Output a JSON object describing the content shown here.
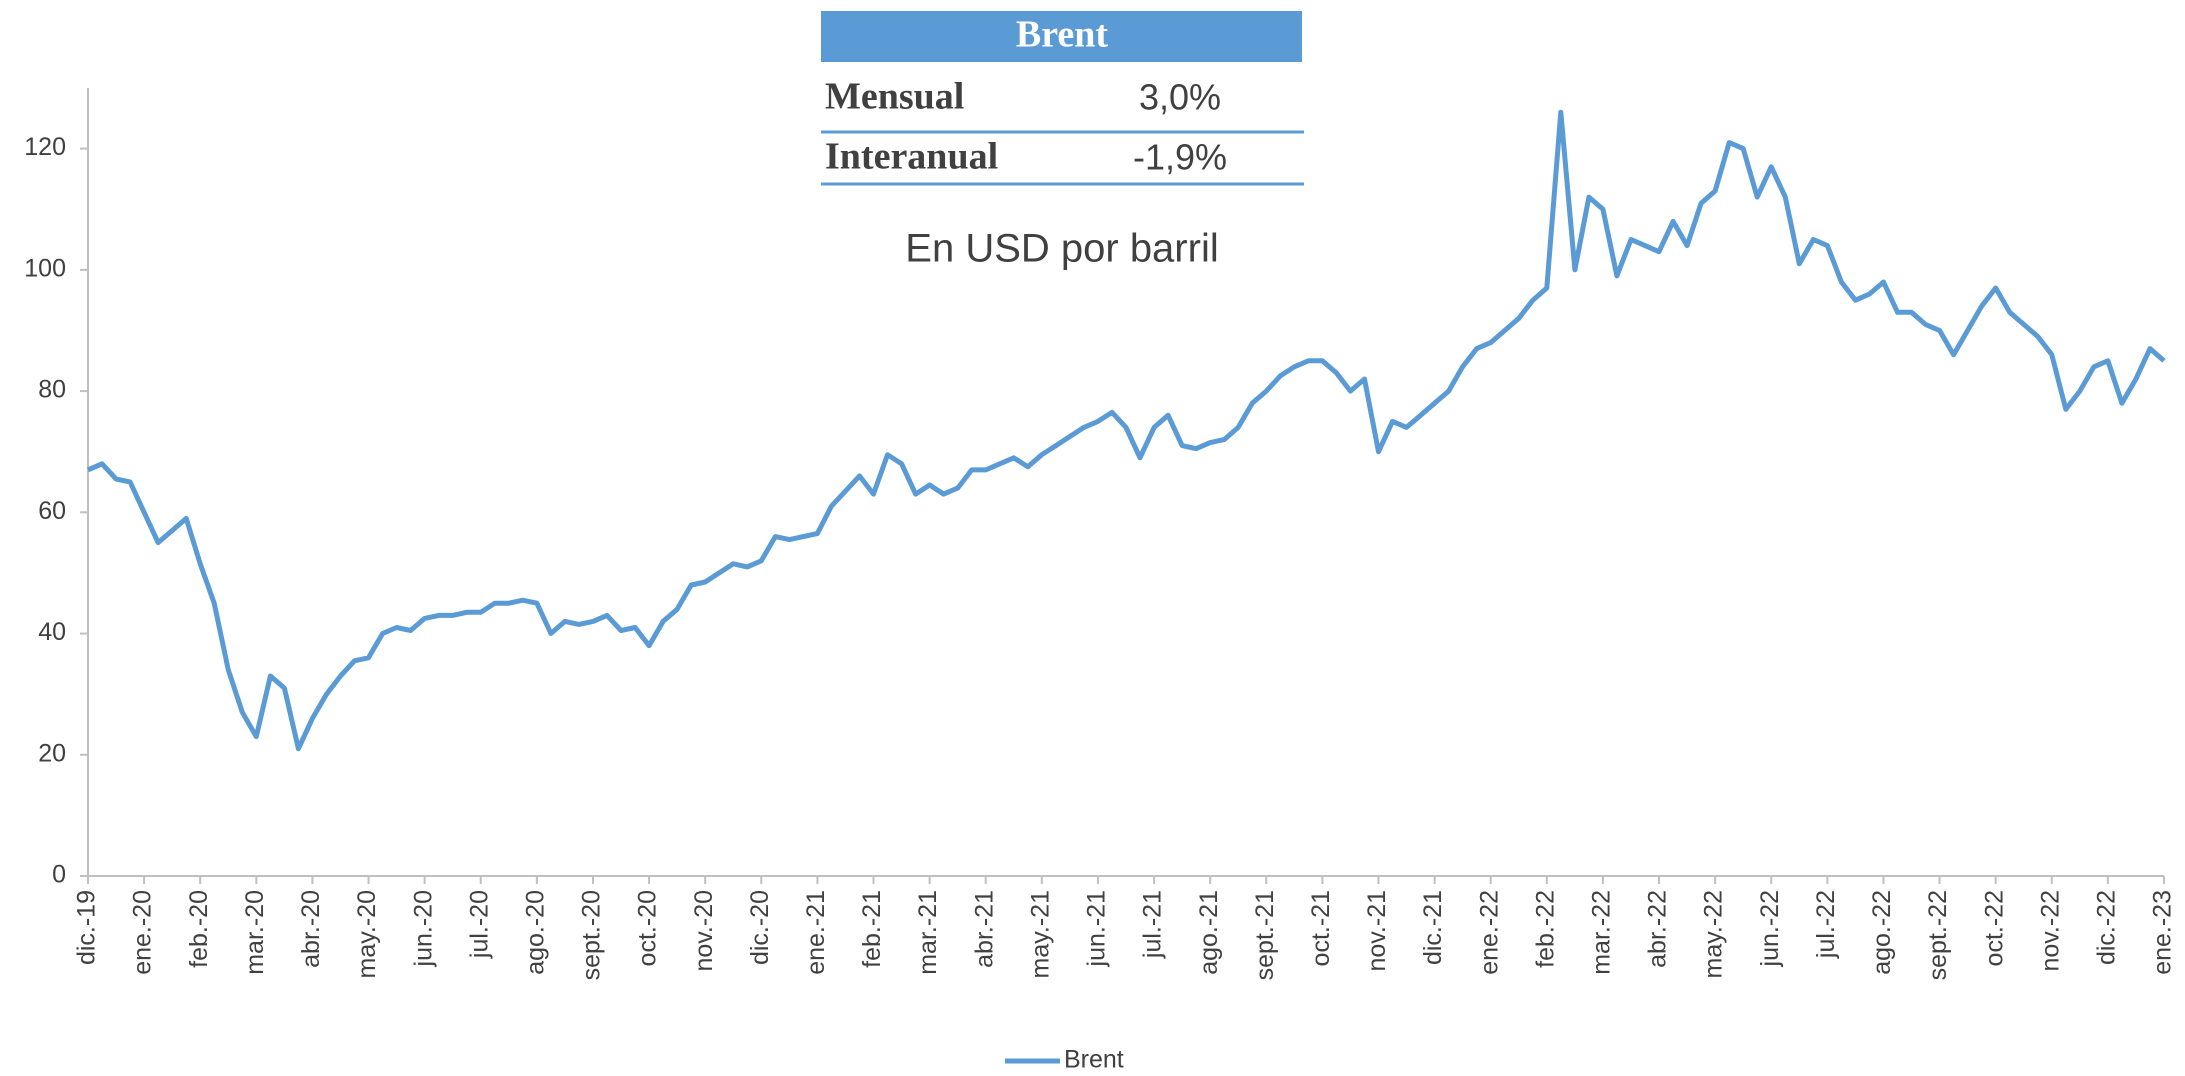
{
  "chart_data": {
    "type": "line",
    "table": {
      "header": "Brent",
      "rows": [
        [
          "Mensual",
          "3,0%"
        ],
        [
          "Interanual",
          "-1,9%"
        ]
      ]
    },
    "subtitle": "En USD por barril",
    "xlim": [
      0,
      37
    ],
    "xticks": [
      {
        "value": 0,
        "label": "dic.-19"
      },
      {
        "value": 1,
        "label": "ene.-20"
      },
      {
        "value": 2,
        "label": "feb.-20"
      },
      {
        "value": 3,
        "label": "mar.-20"
      },
      {
        "value": 4,
        "label": "abr.-20"
      },
      {
        "value": 5,
        "label": "may.-20"
      },
      {
        "value": 6,
        "label": "jun.-20"
      },
      {
        "value": 7,
        "label": "jul.-20"
      },
      {
        "value": 8,
        "label": "ago.-20"
      },
      {
        "value": 9,
        "label": "sept.-20"
      },
      {
        "value": 10,
        "label": "oct.-20"
      },
      {
        "value": 11,
        "label": "nov.-20"
      },
      {
        "value": 12,
        "label": "dic.-20"
      },
      {
        "value": 13,
        "label": "ene.-21"
      },
      {
        "value": 14,
        "label": "feb.-21"
      },
      {
        "value": 15,
        "label": "mar.-21"
      },
      {
        "value": 16,
        "label": "abr.-21"
      },
      {
        "value": 17,
        "label": "may.-21"
      },
      {
        "value": 18,
        "label": "jun.-21"
      },
      {
        "value": 19,
        "label": "jul.-21"
      },
      {
        "value": 20,
        "label": "ago.-21"
      },
      {
        "value": 21,
        "label": "sept.-21"
      },
      {
        "value": 22,
        "label": "oct.-21"
      },
      {
        "value": 23,
        "label": "nov.-21"
      },
      {
        "value": 24,
        "label": "dic.-21"
      },
      {
        "value": 25,
        "label": "ene.-22"
      },
      {
        "value": 26,
        "label": "feb.-22"
      },
      {
        "value": 27,
        "label": "mar.-22"
      },
      {
        "value": 28,
        "label": "abr.-22"
      },
      {
        "value": 29,
        "label": "may.-22"
      },
      {
        "value": 30,
        "label": "jun.-22"
      },
      {
        "value": 31,
        "label": "jul.-22"
      },
      {
        "value": 32,
        "label": "ago.-22"
      },
      {
        "value": 33,
        "label": "sept.-22"
      },
      {
        "value": 34,
        "label": "oct.-22"
      },
      {
        "value": 35,
        "label": "nov.-22"
      },
      {
        "value": 36,
        "label": "dic.-22"
      },
      {
        "value": 37,
        "label": "ene.-23"
      }
    ],
    "ylim": [
      0,
      130
    ],
    "yticks": [
      0,
      20,
      40,
      60,
      80,
      100,
      120
    ],
    "legend": "bottom",
    "x": [
      0,
      0.25,
      0.5,
      0.75,
      1,
      1.25,
      1.5,
      1.75,
      2,
      2.25,
      2.5,
      2.75,
      3,
      3.25,
      3.5,
      3.75,
      4,
      4.25,
      4.5,
      4.75,
      5,
      5.25,
      5.5,
      5.75,
      6,
      6.25,
      6.5,
      6.75,
      7,
      7.25,
      7.5,
      7.75,
      8,
      8.25,
      8.5,
      8.75,
      9,
      9.25,
      9.5,
      9.75,
      10,
      10.25,
      10.5,
      10.75,
      11,
      11.25,
      11.5,
      11.75,
      12,
      12.25,
      12.5,
      12.75,
      13,
      13.25,
      13.5,
      13.75,
      14,
      14.25,
      14.5,
      14.75,
      15,
      15.25,
      15.5,
      15.75,
      16,
      16.25,
      16.5,
      16.75,
      17,
      17.25,
      17.5,
      17.75,
      18,
      18.25,
      18.5,
      18.75,
      19,
      19.25,
      19.5,
      19.75,
      20,
      20.25,
      20.5,
      20.75,
      21,
      21.25,
      21.5,
      21.75,
      22,
      22.25,
      22.5,
      22.75,
      23,
      23.25,
      23.5,
      23.75,
      24,
      24.25,
      24.5,
      24.75,
      25,
      25.25,
      25.5,
      25.75,
      26,
      26.25,
      26.5,
      26.75,
      27,
      27.25,
      27.5,
      27.75,
      28,
      28.25,
      28.5,
      28.75,
      29,
      29.25,
      29.5,
      29.75,
      30,
      30.25,
      30.5,
      30.75,
      31,
      31.25,
      31.5,
      31.75,
      32,
      32.25,
      32.5,
      32.75,
      33,
      33.25,
      33.5,
      33.75,
      34,
      34.25,
      34.5,
      34.75,
      35,
      35.25,
      35.5,
      35.75,
      36,
      36.25,
      36.5,
      36.75,
      37
    ],
    "series": [
      {
        "name": "Brent",
        "color": "#5b9bd5",
        "values": [
          67,
          68,
          65.5,
          65,
          60,
          55,
          57,
          59,
          51.5,
          45,
          34,
          27,
          23,
          33,
          31,
          21,
          26,
          30,
          33,
          35.5,
          36,
          40,
          41,
          40.5,
          42.5,
          43,
          43,
          43.5,
          43.5,
          45,
          45,
          45.5,
          45,
          40,
          42,
          41.5,
          42,
          43,
          40.5,
          41,
          38,
          42,
          44,
          48,
          48.5,
          50,
          51.5,
          51,
          52,
          56,
          55.5,
          56,
          56.5,
          61,
          63.5,
          66,
          63,
          69.5,
          68,
          63,
          64.5,
          63,
          64,
          67,
          67,
          68,
          69,
          67.5,
          69.5,
          71,
          72.5,
          74,
          75,
          76.5,
          74,
          69,
          74,
          76,
          71,
          70.5,
          71.5,
          72,
          74,
          78,
          80,
          82.5,
          84,
          85,
          85,
          83,
          80,
          82,
          70,
          75,
          74,
          76,
          78,
          80,
          84,
          87,
          88,
          90,
          92,
          95,
          97,
          126,
          100,
          112,
          110,
          99,
          105,
          104,
          103,
          108,
          104,
          111,
          113,
          121,
          120,
          112,
          117,
          112,
          101,
          105,
          104,
          98,
          95,
          96,
          98,
          93,
          93,
          91,
          90,
          86,
          90,
          94,
          97,
          93,
          91,
          89,
          86,
          77,
          80,
          84,
          85,
          78,
          82,
          87,
          85
        ]
      }
    ]
  }
}
